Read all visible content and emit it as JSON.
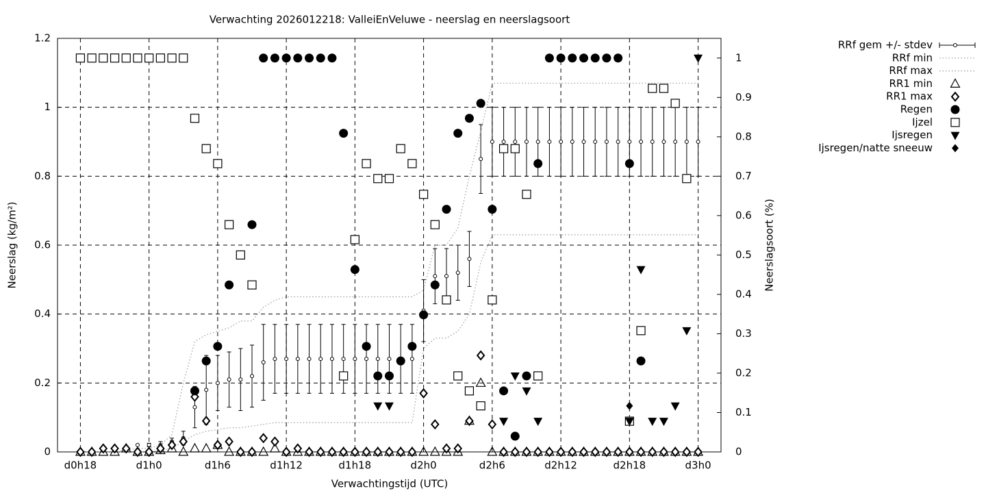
{
  "chart_data": {
    "type": "line",
    "title": "Verwachting 2026012218: ValleiEnVeluwe - neerslag en neerslagsoort",
    "xlabel": "Verwachtingstijd (UTC)",
    "ylabel": "Neerslag (kg/m²)",
    "y2label": "Neerslagsoort (%)",
    "x": [
      18,
      19,
      20,
      21,
      22,
      23,
      24,
      25,
      26,
      27,
      28,
      29,
      30,
      31,
      32,
      33,
      34,
      35,
      36,
      37,
      38,
      39,
      40,
      41,
      42,
      43,
      44,
      45,
      46,
      47,
      48,
      49,
      50,
      51,
      52,
      53,
      54,
      55,
      56,
      57,
      58,
      59,
      60,
      61,
      62,
      63,
      64,
      65,
      66,
      67,
      68,
      69,
      70,
      71,
      72
    ],
    "xlim": [
      16,
      74
    ],
    "xticks": [
      {
        "value": 18,
        "label": "d0h18"
      },
      {
        "value": 24,
        "label": "d1h0"
      },
      {
        "value": 30,
        "label": "d1h6"
      },
      {
        "value": 36,
        "label": "d1h12"
      },
      {
        "value": 42,
        "label": "d1h18"
      },
      {
        "value": 48,
        "label": "d2h0"
      },
      {
        "value": 54,
        "label": "d2h6"
      },
      {
        "value": 60,
        "label": "d2h12"
      },
      {
        "value": 66,
        "label": "d2h18"
      },
      {
        "value": 72,
        "label": "d3h0"
      }
    ],
    "ylim": [
      0,
      1.2
    ],
    "yticks": [
      0,
      0.2,
      0.4,
      0.6,
      0.8,
      1,
      1.2
    ],
    "y2lim": [
      0,
      1.05
    ],
    "y2ticks": [
      0,
      0.1,
      0.2,
      0.3,
      0.4,
      0.5,
      0.6,
      0.7,
      0.8,
      0.9,
      1
    ],
    "grid": true,
    "legend": "outside-right",
    "series": [
      {
        "name": "RRf gem +/- stdev",
        "color": "#000000",
        "marker": "errorbar",
        "axis": "y",
        "values": [
          0,
          0,
          0.005,
          0.01,
          0.015,
          0.02,
          0.02,
          0.02,
          0.03,
          0.04,
          0.13,
          0.18,
          0.2,
          0.21,
          0.21,
          0.22,
          0.26,
          0.27,
          0.27,
          0.27,
          0.27,
          0.27,
          0.27,
          0.27,
          0.27,
          0.27,
          0.27,
          0.27,
          0.27,
          0.27,
          0.41,
          0.51,
          0.51,
          0.52,
          0.56,
          0.85,
          0.9,
          0.9,
          0.9,
          0.9,
          0.9,
          0.9,
          0.9,
          0.9,
          0.9,
          0.9,
          0.9,
          0.9,
          0.9,
          0.9,
          0.9,
          0.9,
          0.9,
          0.9,
          0.9
        ],
        "errors": [
          0,
          0,
          0,
          0,
          0,
          0,
          0.005,
          0.01,
          0.01,
          0.02,
          0.06,
          0.1,
          0.08,
          0.08,
          0.09,
          0.09,
          0.11,
          0.1,
          0.1,
          0.1,
          0.1,
          0.1,
          0.1,
          0.1,
          0.1,
          0.1,
          0.1,
          0.1,
          0.1,
          0.1,
          0.09,
          0.08,
          0.08,
          0.08,
          0.08,
          0.1,
          0.1,
          0.1,
          0.1,
          0.1,
          0.1,
          0.1,
          0.1,
          0.1,
          0.1,
          0.1,
          0.1,
          0.1,
          0.1,
          0.1,
          0.1,
          0.1,
          0.1,
          0.1,
          0.1
        ]
      },
      {
        "name": "RRf min",
        "color": "#999999",
        "marker": "dotted",
        "axis": "y",
        "values": [
          0,
          0,
          0,
          0,
          0,
          0,
          0,
          0.005,
          0.01,
          0.03,
          0.05,
          0.06,
          0.065,
          0.07,
          0.07,
          0.075,
          0.08,
          0.085,
          0.085,
          0.085,
          0.085,
          0.085,
          0.085,
          0.085,
          0.085,
          0.085,
          0.085,
          0.085,
          0.085,
          0.085,
          0.3,
          0.33,
          0.33,
          0.35,
          0.4,
          0.55,
          0.63,
          0.63,
          0.63,
          0.63,
          0.63,
          0.63,
          0.63,
          0.63,
          0.63,
          0.63,
          0.63,
          0.63,
          0.63,
          0.63,
          0.63,
          0.63,
          0.63,
          0.63,
          0.63
        ]
      },
      {
        "name": "RRf max",
        "color": "#999999",
        "marker": "dotted",
        "axis": "y",
        "values": [
          0,
          0,
          0,
          0,
          0.005,
          0.01,
          0.01,
          0.02,
          0.05,
          0.2,
          0.32,
          0.34,
          0.35,
          0.36,
          0.38,
          0.38,
          0.42,
          0.44,
          0.45,
          0.45,
          0.45,
          0.45,
          0.45,
          0.45,
          0.45,
          0.45,
          0.45,
          0.45,
          0.45,
          0.45,
          0.47,
          0.6,
          0.6,
          0.65,
          0.8,
          0.93,
          1.07,
          1.07,
          1.07,
          1.07,
          1.07,
          1.07,
          1.07,
          1.07,
          1.07,
          1.07,
          1.07,
          1.07,
          1.07,
          1.07,
          1.07,
          1.07,
          1.07,
          1.07,
          1.07
        ]
      },
      {
        "name": "RR1 min",
        "color": "#000000",
        "marker": "triangle-open",
        "axis": "y",
        "values": [
          0,
          0,
          0,
          0,
          0.01,
          0,
          0,
          0.005,
          0.01,
          0,
          0.01,
          0.01,
          0.02,
          0,
          0,
          0,
          0,
          0.01,
          0,
          0,
          0,
          0,
          0,
          0,
          0,
          0,
          0,
          0,
          0,
          0,
          0,
          0,
          0,
          0,
          0.09,
          0.2,
          0,
          0,
          0,
          0,
          0,
          0,
          0,
          0,
          0,
          0,
          0,
          0,
          0,
          0,
          0,
          0,
          0,
          0,
          0
        ]
      },
      {
        "name": "RR1 max",
        "color": "#000000",
        "marker": "diamond-open",
        "axis": "y",
        "values": [
          0,
          0,
          0.01,
          0.01,
          0.01,
          0,
          0,
          0.01,
          0.02,
          0.03,
          0.16,
          0.09,
          0.02,
          0.03,
          0,
          0,
          0.04,
          0.03,
          0,
          0.01,
          0,
          0,
          0,
          0,
          0,
          0,
          0,
          0,
          0,
          0,
          0.17,
          0.08,
          0.01,
          0.01,
          0.09,
          0.28,
          0.08,
          0,
          0,
          0,
          0,
          0,
          0,
          0,
          0,
          0,
          0,
          0,
          0,
          0,
          0,
          0,
          0,
          0,
          0
        ]
      },
      {
        "name": "Regen",
        "color": "#000000",
        "marker": "circle-filled",
        "axis": "y2",
        "values": [
          null,
          null,
          null,
          null,
          null,
          null,
          null,
          null,
          null,
          null,
          0.155,
          0.231,
          0.268,
          0.424,
          0.5,
          0.577,
          1,
          1,
          1,
          1,
          1,
          1,
          1,
          0.809,
          0.463,
          0.268,
          0.193,
          0.193,
          0.231,
          0.268,
          0.348,
          0.424,
          0.616,
          0.809,
          0.847,
          0.885,
          0.616,
          0.155,
          0.04,
          0.193,
          0.732,
          1,
          1,
          1,
          1,
          1,
          1,
          1,
          0.732,
          0.231,
          null,
          null,
          null,
          null,
          null
        ]
      },
      {
        "name": "Ijzel",
        "color": "#000000",
        "marker": "square-open",
        "axis": "y2",
        "values": [
          1,
          1,
          1,
          1,
          1,
          1,
          1,
          1,
          1,
          1,
          0.847,
          0.77,
          0.732,
          0.577,
          0.5,
          0.424,
          null,
          null,
          null,
          null,
          null,
          null,
          null,
          0.193,
          0.539,
          0.732,
          0.694,
          0.694,
          0.77,
          0.732,
          0.654,
          0.577,
          0.386,
          0.193,
          0.155,
          0.117,
          0.386,
          0.77,
          0.77,
          0.654,
          0.193,
          null,
          null,
          null,
          null,
          null,
          null,
          null,
          0.078,
          0.308,
          0.923,
          0.923,
          0.885,
          0.694,
          null
        ]
      },
      {
        "name": "Ijsregen",
        "color": "#000000",
        "marker": "triangle-down-filled",
        "axis": "y2",
        "values": [
          null,
          null,
          null,
          null,
          null,
          null,
          null,
          null,
          null,
          null,
          null,
          null,
          null,
          null,
          null,
          null,
          null,
          null,
          null,
          null,
          null,
          null,
          null,
          null,
          null,
          null,
          0.117,
          0.117,
          null,
          null,
          null,
          null,
          null,
          null,
          null,
          null,
          null,
          0.078,
          0.193,
          0.155,
          0.078,
          null,
          null,
          null,
          null,
          null,
          null,
          null,
          0.078,
          0.463,
          0.078,
          0.078,
          0.117,
          0.308,
          1
        ]
      },
      {
        "name": "Ijsregen/natte sneeuw",
        "color": "#000000",
        "marker": "diamond-filled",
        "axis": "y2",
        "values": [
          null,
          null,
          null,
          null,
          null,
          null,
          null,
          null,
          null,
          null,
          null,
          null,
          null,
          null,
          null,
          null,
          null,
          null,
          null,
          null,
          null,
          null,
          null,
          null,
          null,
          null,
          null,
          null,
          null,
          null,
          null,
          null,
          null,
          null,
          null,
          null,
          null,
          null,
          null,
          null,
          null,
          null,
          null,
          null,
          null,
          null,
          null,
          null,
          0.117,
          null,
          null,
          null,
          null,
          null,
          null
        ]
      }
    ]
  }
}
